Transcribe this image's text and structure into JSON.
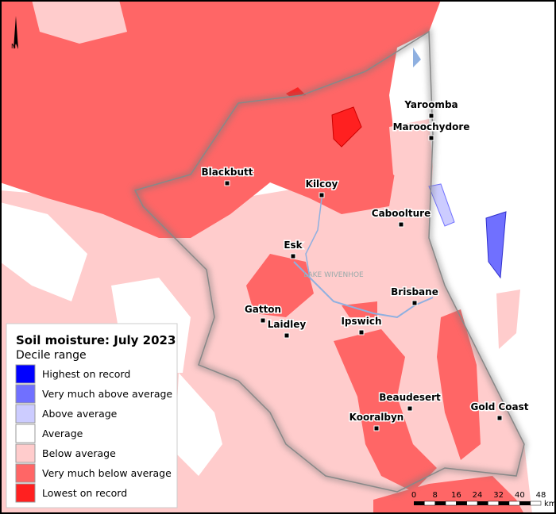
{
  "map": {
    "north_label": "N",
    "water_label": "LAKE WIVENHOE"
  },
  "towns": [
    "Yaroomba",
    "Maroochydore",
    "Blackbutt",
    "Kilcoy",
    "Caboolture",
    "Esk",
    "Brisbane",
    "Gatton",
    "Laidley",
    "Ipswich",
    "Beaudesert",
    "Gold Coast",
    "Kooralbyn"
  ],
  "legend": {
    "title": "Soil moisture: July 2023",
    "subtitle": "Decile range",
    "items": [
      {
        "label": "Highest on record",
        "color": "#0000ff"
      },
      {
        "label": "Very much above average",
        "color": "#7070ff"
      },
      {
        "label": "Above average",
        "color": "#ccccff"
      },
      {
        "label": "Average",
        "color": "#ffffff"
      },
      {
        "label": "Below average",
        "color": "#ffcccc"
      },
      {
        "label": "Very much below average",
        "color": "#ff6666"
      },
      {
        "label": "Lowest on record",
        "color": "#ff2020"
      }
    ]
  },
  "scale_bar": {
    "ticks": [
      0,
      8,
      16,
      24,
      32,
      40,
      48
    ],
    "unit": "km"
  }
}
